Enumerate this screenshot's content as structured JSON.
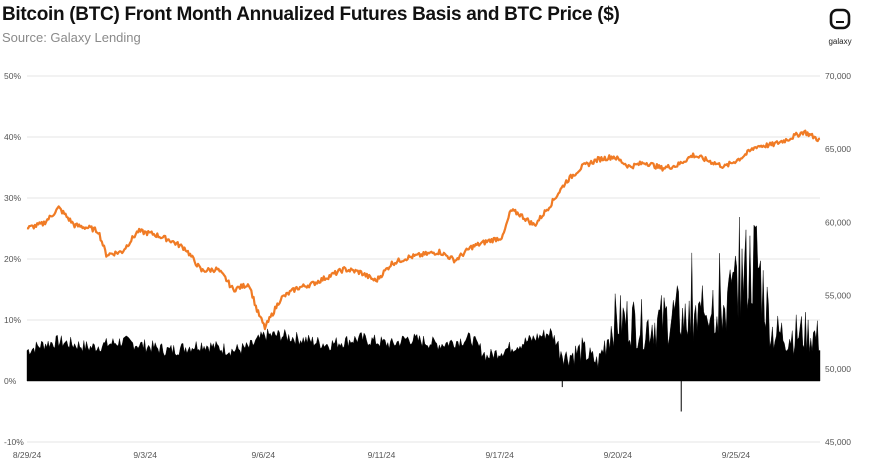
{
  "header": {
    "title": "Bitcoin (BTC) Front Month Annualized Futures Basis and BTC Price ($)",
    "subtitle": "Source: Galaxy Lending",
    "logo_text": "galaxy"
  },
  "colors": {
    "basis": "#000000",
    "price": "#f07b25",
    "grid": "#e6e6e6"
  },
  "chart_data": {
    "type": "area",
    "title": "Bitcoin (BTC) Front Month Annualized Futures Basis and BTC Price ($)",
    "xlabel": "",
    "ylabel": "",
    "y_left_ticks": [
      "-10%",
      "0%",
      "10%",
      "20%",
      "30%",
      "40%",
      "50%"
    ],
    "y_left_lim": [
      -10,
      50
    ],
    "y_right_ticks": [
      "45,000",
      "50,000",
      "55,000",
      "60,000",
      "65,000",
      "70,000"
    ],
    "y_right_lim": [
      45000,
      70000
    ],
    "x_ticks": [
      "8/29/24",
      "9/3/24",
      "9/6/24",
      "9/11/24",
      "9/17/24",
      "9/20/24",
      "9/25/24"
    ],
    "x_tick_positions": [
      0,
      0.149,
      0.298,
      0.447,
      0.596,
      0.745,
      0.894
    ],
    "grid": "horizontal",
    "series": [
      {
        "axis": "left",
        "style": "area",
        "x": [
          0,
          0.02,
          0.04,
          0.06,
          0.08,
          0.1,
          0.12,
          0.14,
          0.16,
          0.18,
          0.2,
          0.22,
          0.24,
          0.26,
          0.28,
          0.3,
          0.32,
          0.34,
          0.36,
          0.38,
          0.4,
          0.42,
          0.44,
          0.46,
          0.48,
          0.5,
          0.52,
          0.54,
          0.56,
          0.58,
          0.6,
          0.62,
          0.64,
          0.66,
          0.68,
          0.7,
          0.72,
          0.74,
          0.76,
          0.78,
          0.8,
          0.82,
          0.84,
          0.86,
          0.88,
          0.9,
          0.92,
          0.94,
          0.96,
          0.98,
          1.0
        ],
        "values": [
          5,
          6,
          6.5,
          6,
          5.5,
          6,
          6.5,
          6,
          5.5,
          5,
          5.5,
          6,
          5.5,
          5,
          5.5,
          7.5,
          7.5,
          7,
          6.5,
          6,
          6.5,
          7,
          6.5,
          6,
          7,
          6.5,
          6,
          6.5,
          7,
          4,
          5,
          6,
          7,
          8,
          4,
          5,
          3,
          10,
          10,
          9,
          10,
          11,
          9,
          13,
          12,
          17,
          20,
          8,
          7.5,
          8,
          7
        ]
      },
      {
        "axis": "right",
        "style": "line",
        "x": [
          0,
          0.02,
          0.03,
          0.04,
          0.06,
          0.08,
          0.09,
          0.1,
          0.12,
          0.14,
          0.16,
          0.18,
          0.2,
          0.22,
          0.24,
          0.25,
          0.26,
          0.28,
          0.29,
          0.3,
          0.32,
          0.34,
          0.36,
          0.38,
          0.4,
          0.42,
          0.44,
          0.46,
          0.48,
          0.5,
          0.52,
          0.54,
          0.56,
          0.58,
          0.6,
          0.61,
          0.62,
          0.64,
          0.66,
          0.68,
          0.7,
          0.72,
          0.74,
          0.76,
          0.78,
          0.8,
          0.82,
          0.84,
          0.86,
          0.88,
          0.9,
          0.92,
          0.94,
          0.96,
          0.98,
          1.0
        ],
        "values": [
          59600,
          59900,
          60400,
          61000,
          59800,
          59600,
          59400,
          57800,
          58000,
          59400,
          59200,
          58800,
          58200,
          56700,
          56800,
          56200,
          55400,
          55800,
          54000,
          52800,
          54800,
          55500,
          55800,
          56300,
          56800,
          56600,
          56000,
          57200,
          57600,
          57800,
          58000,
          57400,
          58300,
          58700,
          59000,
          60800,
          60600,
          59800,
          61200,
          62800,
          63800,
          64300,
          64500,
          63800,
          64100,
          63700,
          63900,
          64600,
          64200,
          63800,
          64400,
          65200,
          65300,
          65700,
          66200,
          65600
        ]
      }
    ]
  }
}
